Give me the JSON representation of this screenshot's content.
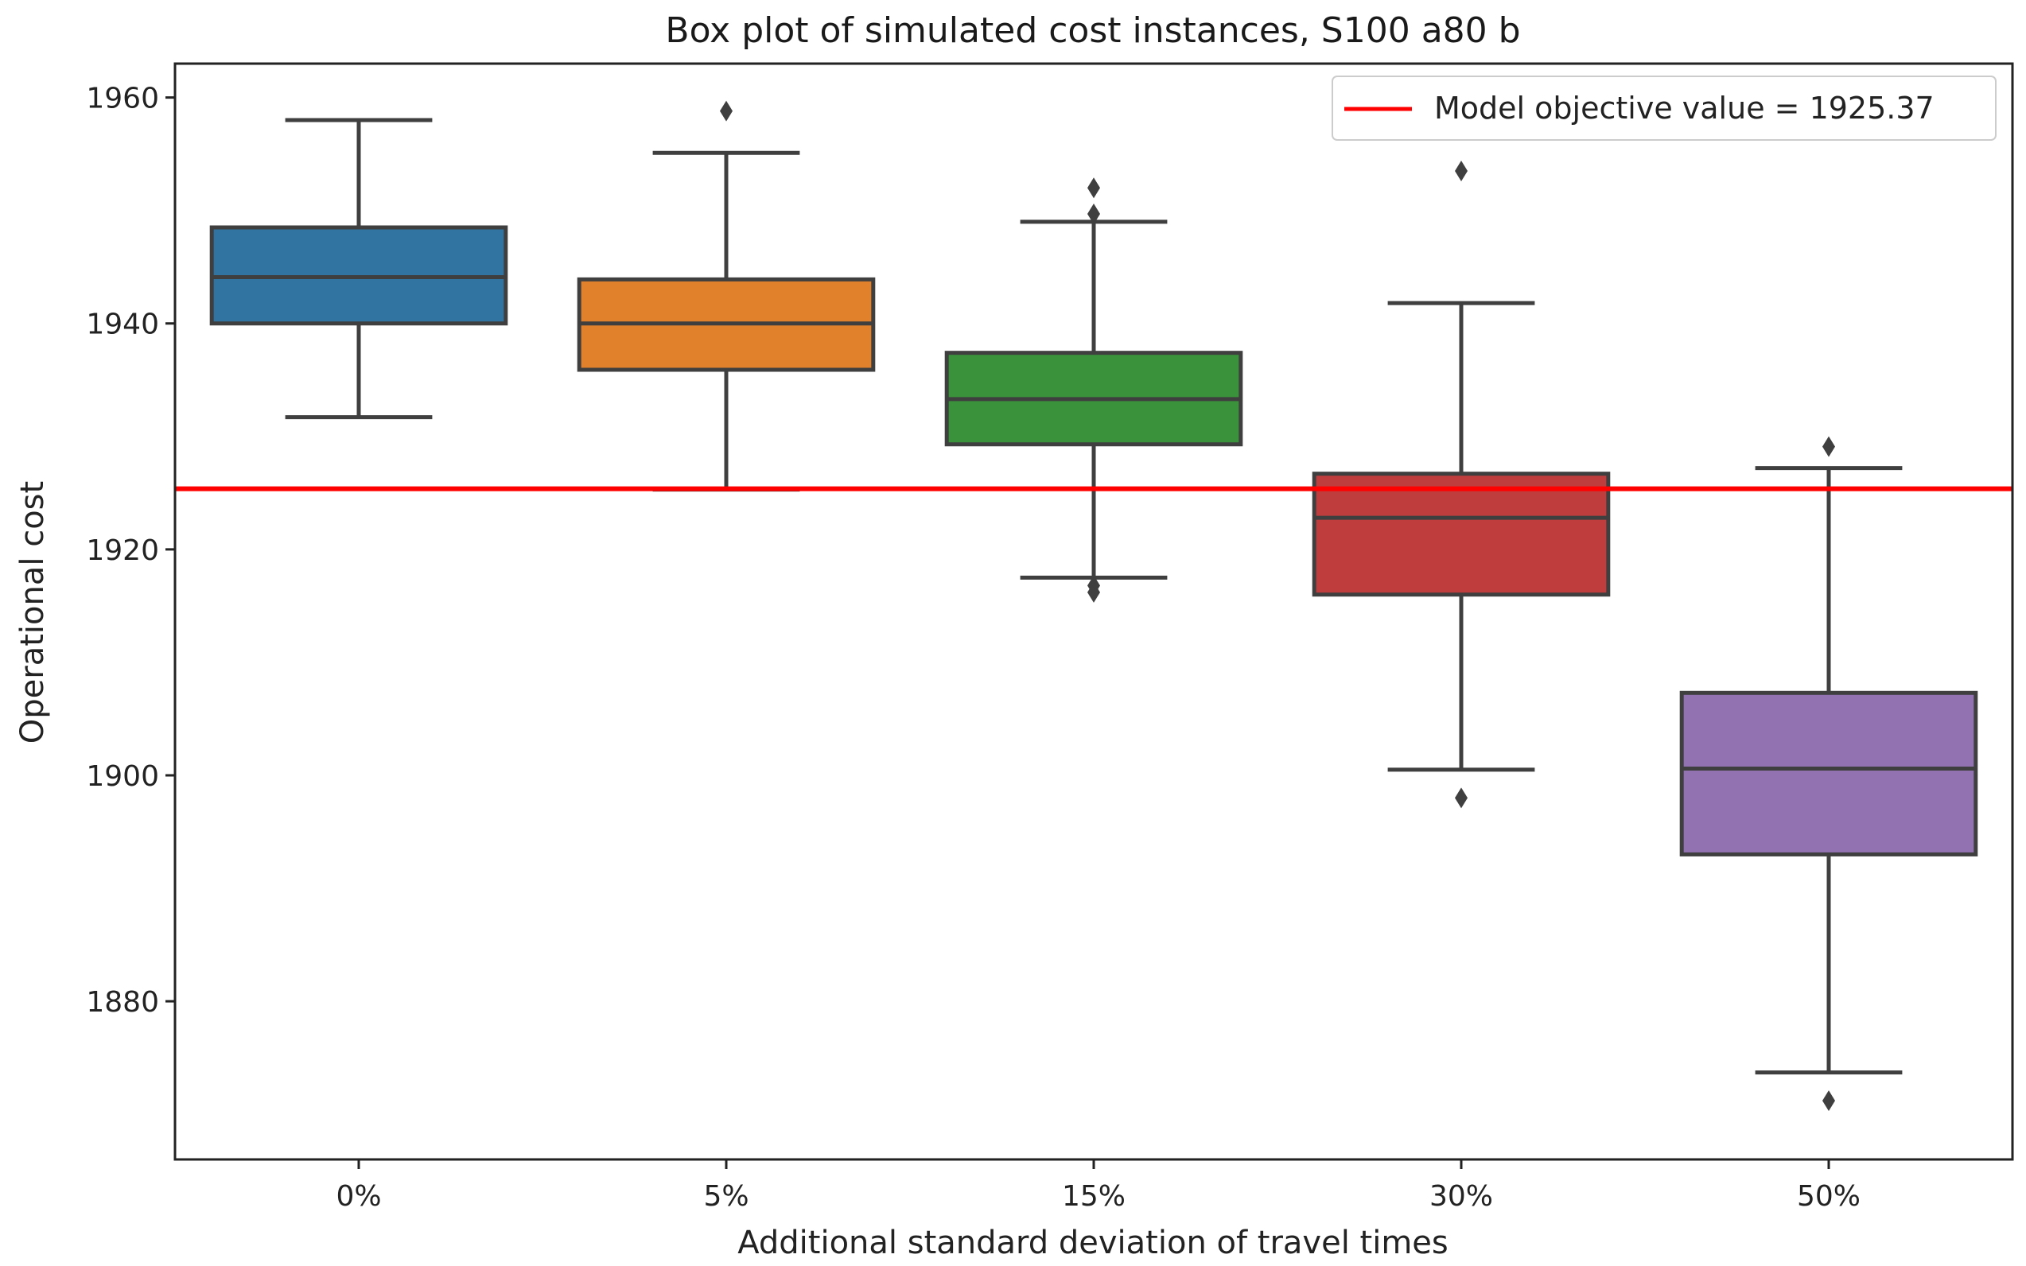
{
  "chart_data": {
    "type": "box",
    "title": "Box plot of simulated cost instances, S100 a80 b",
    "xlabel": "Additional standard deviation of travel times",
    "ylabel": "Operational cost",
    "ylim": [
      1866,
      1963
    ],
    "yticks": [
      "1880",
      "1900",
      "1920",
      "1940",
      "1960"
    ],
    "categories": [
      "0%",
      "5%",
      "15%",
      "30%",
      "50%"
    ],
    "colors": [
      "#3274a1",
      "#e1812c",
      "#3a923a",
      "#c03d3e",
      "#9372b2"
    ],
    "boxes": [
      {
        "whislo": 1931.7,
        "q1": 1940.0,
        "med": 1944.1,
        "q3": 1948.5,
        "whishi": 1958.0,
        "fliers": []
      },
      {
        "whislo": 1925.3,
        "q1": 1935.9,
        "med": 1940.0,
        "q3": 1943.9,
        "whishi": 1955.1,
        "fliers": [
          1958.8
        ]
      },
      {
        "whislo": 1917.5,
        "q1": 1929.3,
        "med": 1933.3,
        "q3": 1937.4,
        "whishi": 1949.0,
        "fliers": [
          1952.0,
          1949.7,
          1916.8,
          1916.2
        ]
      },
      {
        "whislo": 1900.5,
        "q1": 1916.0,
        "med": 1922.8,
        "q3": 1926.7,
        "whishi": 1941.8,
        "fliers": [
          1953.5,
          1898.0
        ]
      },
      {
        "whislo": 1873.7,
        "q1": 1893.0,
        "med": 1900.6,
        "q3": 1907.3,
        "whishi": 1927.2,
        "fliers": [
          1929.1,
          1871.2
        ]
      }
    ],
    "reference_line": {
      "value": 1925.37,
      "color": "#ff0000",
      "label": "Model objective value = 1925.37"
    },
    "legend_position": "top-right"
  }
}
